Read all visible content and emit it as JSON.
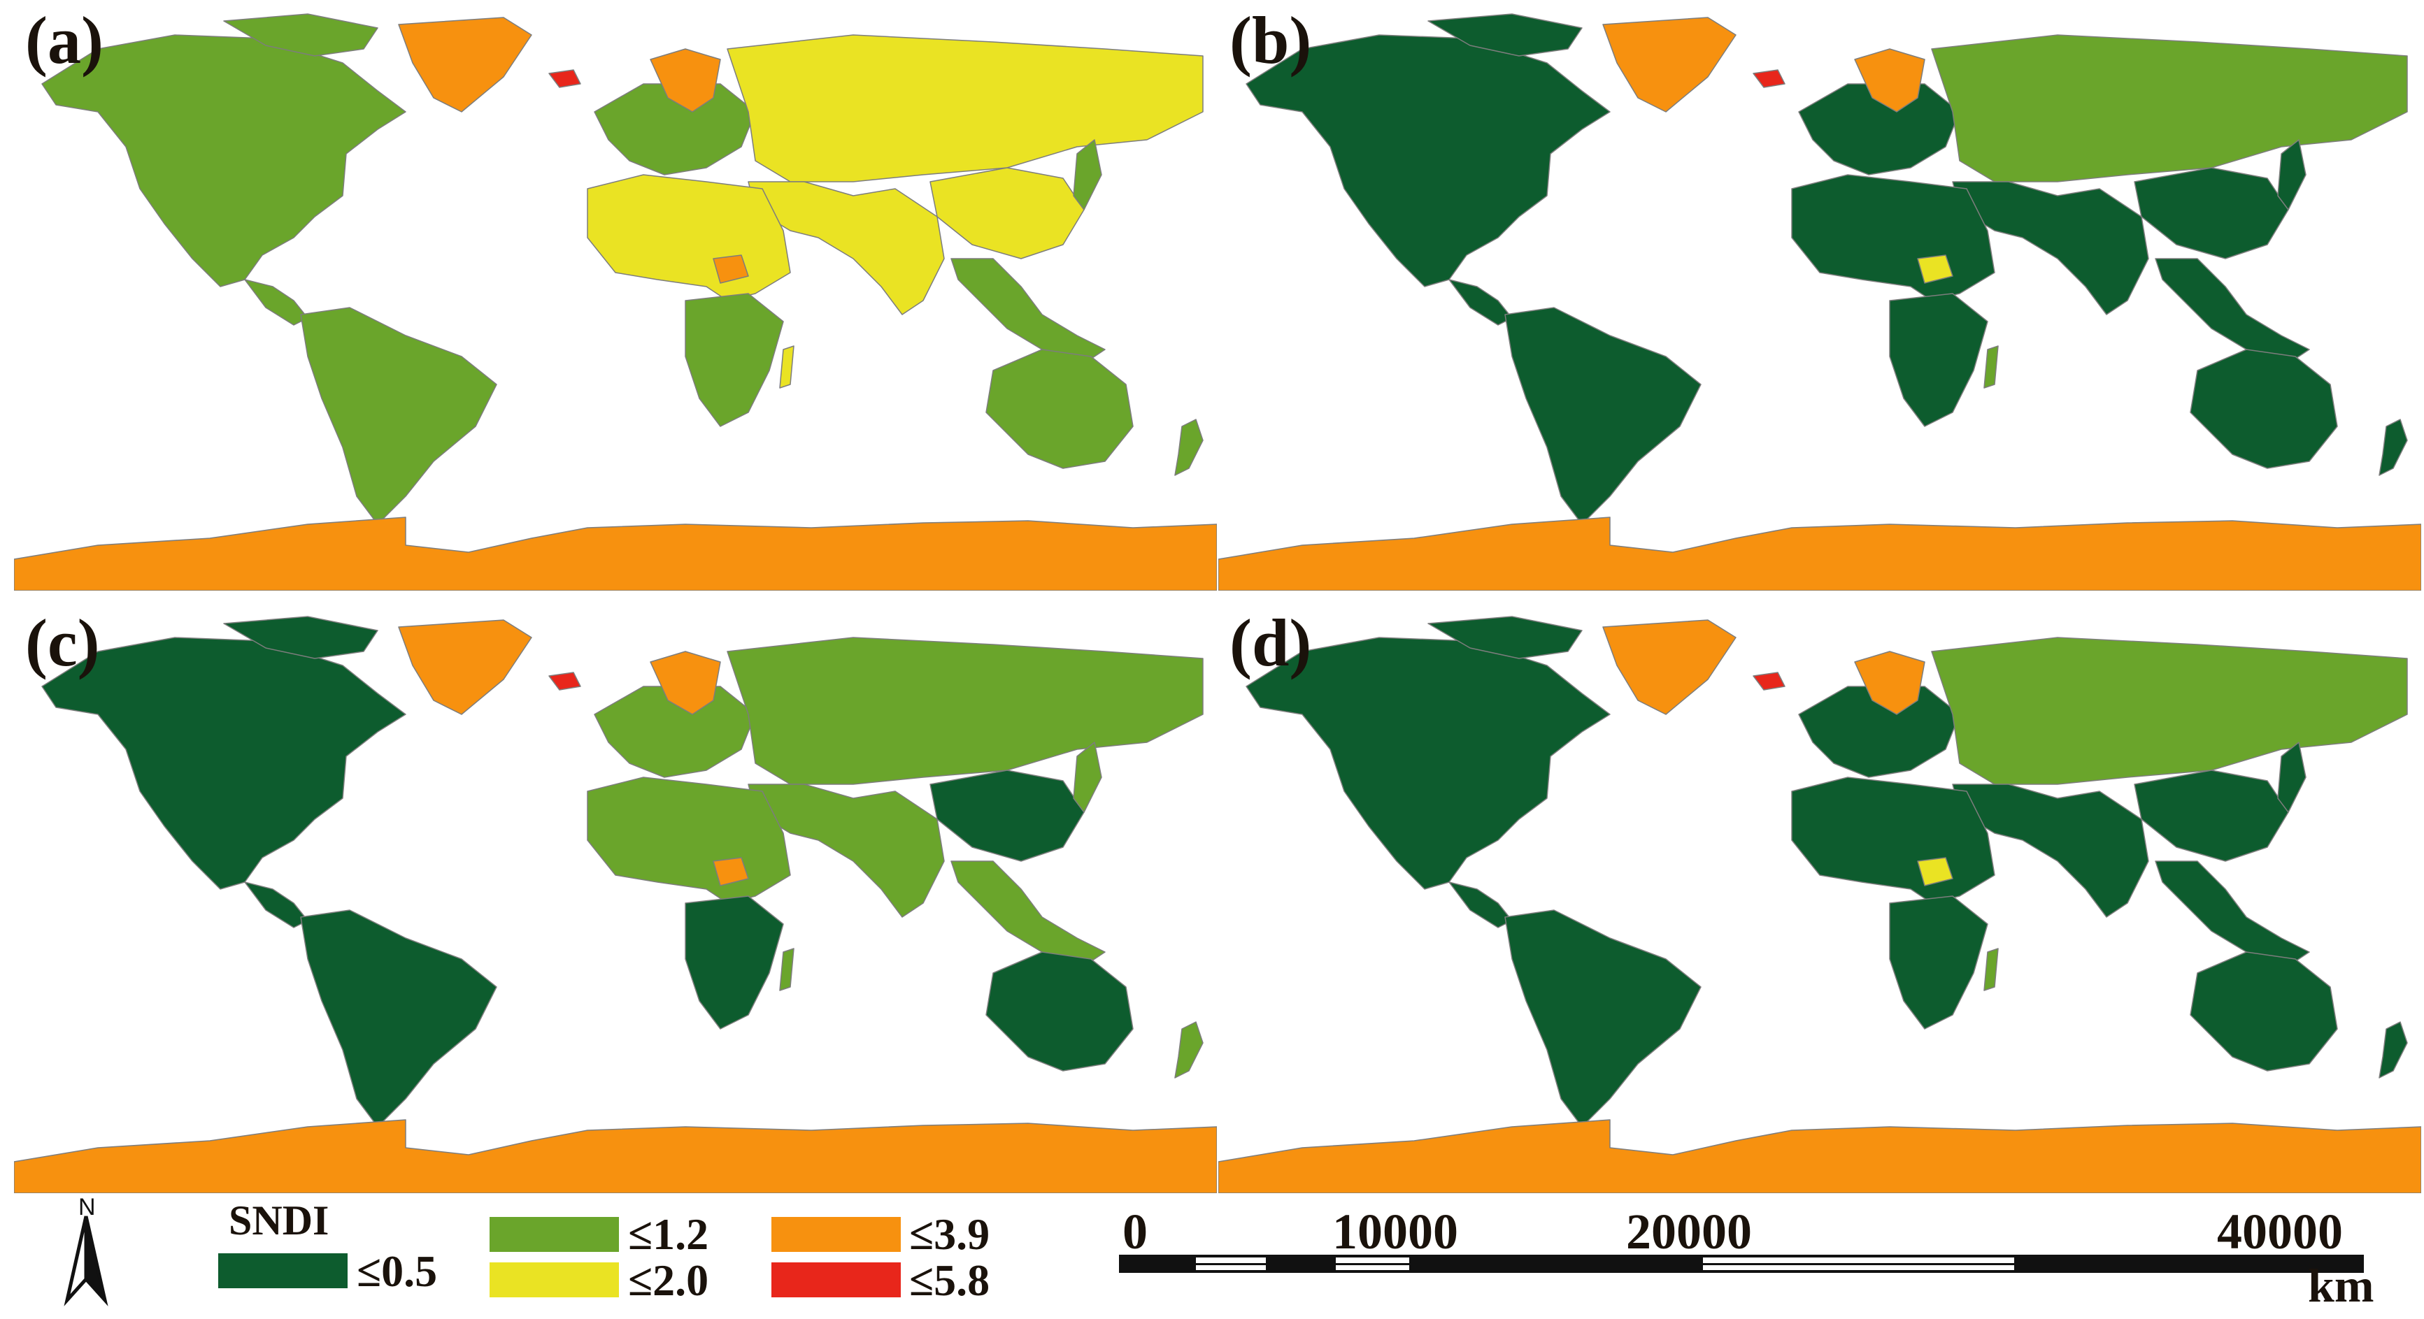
{
  "panels": [
    {
      "label": "(a)",
      "palette": {
        "americas": "#6aa52b",
        "greenland": "#f7910f",
        "iceland": "#e8261b",
        "scandinavia": "#f7910f",
        "europe": "#6aa52b",
        "russia_asia": "#eae323",
        "africa": "#eae323",
        "africa_south": "#6aa52b",
        "china": "#eae323",
        "india": "#eae323",
        "se_asia": "#6aa52b",
        "australia": "#6aa52b",
        "nz": "#6aa52b",
        "antarctica": "#f7910f",
        "madagascar": "#eae323",
        "hotspot": "#f7910f"
      }
    },
    {
      "label": "(b)",
      "palette": {
        "americas": "#0d5c2e",
        "greenland": "#f7910f",
        "iceland": "#e8261b",
        "scandinavia": "#f7910f",
        "europe": "#0d5c2e",
        "russia_asia": "#6aa52b",
        "africa": "#0d5c2e",
        "africa_south": "#0d5c2e",
        "china": "#0d5c2e",
        "india": "#0d5c2e",
        "se_asia": "#0d5c2e",
        "australia": "#0d5c2e",
        "nz": "#0d5c2e",
        "antarctica": "#f7910f",
        "madagascar": "#6aa52b",
        "hotspot": "#eae323"
      }
    },
    {
      "label": "(c)",
      "palette": {
        "americas": "#0d5c2e",
        "greenland": "#f7910f",
        "iceland": "#e8261b",
        "scandinavia": "#f7910f",
        "europe": "#6aa52b",
        "russia_asia": "#6aa52b",
        "africa": "#6aa52b",
        "africa_south": "#0d5c2e",
        "china": "#0d5c2e",
        "india": "#6aa52b",
        "se_asia": "#6aa52b",
        "australia": "#0d5c2e",
        "nz": "#6aa52b",
        "antarctica": "#f7910f",
        "madagascar": "#6aa52b",
        "hotspot": "#f7910f"
      }
    },
    {
      "label": "(d)",
      "palette": {
        "americas": "#0d5c2e",
        "greenland": "#f7910f",
        "iceland": "#e8261b",
        "scandinavia": "#f7910f",
        "europe": "#0d5c2e",
        "russia_asia": "#6aa52b",
        "africa": "#0d5c2e",
        "africa_south": "#0d5c2e",
        "china": "#0d5c2e",
        "india": "#0d5c2e",
        "se_asia": "#0d5c2e",
        "australia": "#0d5c2e",
        "nz": "#0d5c2e",
        "antarctica": "#f7910f",
        "madagascar": "#6aa52b",
        "hotspot": "#eae323"
      }
    }
  ],
  "legend": {
    "title": "SNDI",
    "items": [
      {
        "label": "≤0.5",
        "color": "#0d5c2e"
      },
      {
        "label": "≤1.2",
        "color": "#6aa52b"
      },
      {
        "label": "≤2.0",
        "color": "#eae323"
      },
      {
        "label": "≤3.9",
        "color": "#f7910f"
      },
      {
        "label": "≤5.8",
        "color": "#e8261b"
      }
    ]
  },
  "north_arrow": {
    "letter": "N"
  },
  "scale_bar": {
    "ticks": [
      "0",
      "10000",
      "20000",
      "40000"
    ],
    "unit": "km"
  }
}
